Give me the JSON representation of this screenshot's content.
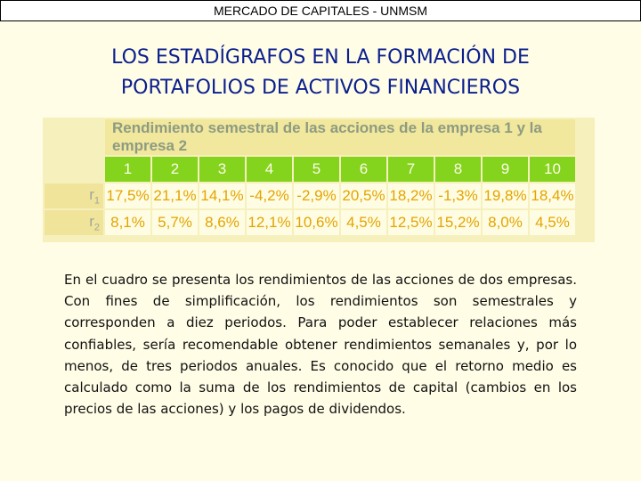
{
  "header": {
    "text": "MERCADO DE CAPITALES - UNMSM"
  },
  "title": {
    "line1": "LOS ESTADÍGRAFOS EN LA FORMACIÓN DE",
    "line2": "PORTAFOLIOS DE ACTIVOS FINANCIEROS"
  },
  "table": {
    "caption": "Rendimiento semestral de las acciones de la empresa 1 y la empresa 2",
    "periods": [
      "1",
      "2",
      "3",
      "4",
      "5",
      "6",
      "7",
      "8",
      "9",
      "10"
    ],
    "rows": [
      {
        "label": "r",
        "sub": "1",
        "values": [
          "17,5%",
          "21,1%",
          "14,1%",
          "-4,2%",
          "-2,9%",
          "20,5%",
          "18,2%",
          "-1,3%",
          "19,8%",
          "18,4%"
        ]
      },
      {
        "label": "r",
        "sub": "2",
        "values": [
          "8,1%",
          "5,7%",
          "8,6%",
          "12,1%",
          "10,6%",
          "4,5%",
          "12,5%",
          "15,2%",
          "8,0%",
          "4,5%"
        ]
      }
    ]
  },
  "body": {
    "paragraph": "En el cuadro se presenta los rendimientos de las acciones de dos empresas. Con fines de simplificación, los rendimientos son semestrales y corresponden a diez periodos. Para poder establecer relaciones más confiables, sería recomendable obtener rendimientos semanales y, por lo menos, de tres periodos anuales. Es conocido que el retorno medio es calculado como la suma de los rendimientos de capital (cambios en los precios de las acciones) y los pagos de dividendos."
  }
}
